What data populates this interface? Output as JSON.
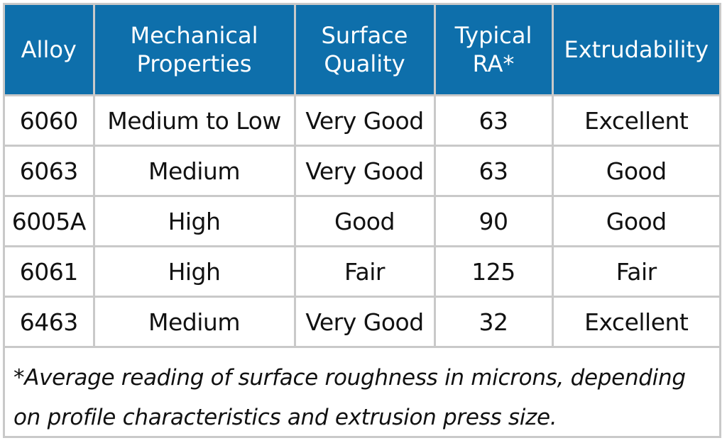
{
  "table": {
    "headers": [
      "Alloy",
      "Mechanical Properties",
      "Surface Quality",
      "Typical RA*",
      "Extrudability"
    ],
    "rows": [
      [
        "6060",
        "Medium to Low",
        "Very Good",
        "63",
        "Excellent"
      ],
      [
        "6063",
        "Medium",
        "Very Good",
        "63",
        "Good"
      ],
      [
        "6005A",
        "High",
        "Good",
        "90",
        "Good"
      ],
      [
        "6061",
        "High",
        "Fair",
        "125",
        "Fair"
      ],
      [
        "6463",
        "Medium",
        "Very Good",
        "32",
        "Excellent"
      ]
    ],
    "footnote": "*Average reading of surface roughness in microns, depending on profile characteristics and extrusion press size."
  },
  "colors": {
    "header_background": "#0e6fab",
    "header_text": "#ffffff",
    "grid_lines": "#c9c9c9",
    "body_text": "#111111"
  }
}
